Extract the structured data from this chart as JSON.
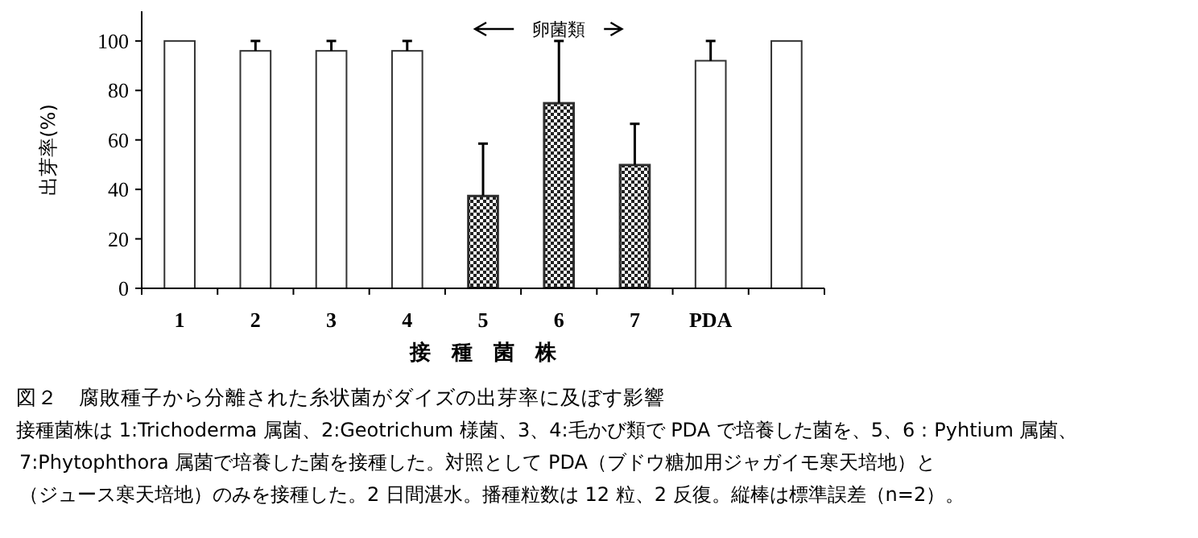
{
  "chart_data": {
    "type": "bar",
    "title": "図２　腐敗種子から分離された糸状菌がダイズの出芽率に及ぼす影響",
    "xlabel": "接　種　菌　株",
    "ylabel": "出芽率(%)",
    "categories": [
      "1",
      "2",
      "3",
      "4",
      "5",
      "6",
      "7",
      "PDA",
      null
    ],
    "values": [
      100,
      96,
      96,
      96,
      37.5,
      75,
      50,
      92,
      100
    ],
    "errors": [
      null,
      [
        96,
        100
      ],
      [
        96,
        100
      ],
      [
        96,
        100
      ],
      [
        37.5,
        58.5
      ],
      [
        75,
        100
      ],
      [
        50,
        66.5
      ],
      [
        92,
        100
      ],
      null
    ],
    "colors": [
      "#ffffff",
      "#ffffff",
      "#ffffff",
      "#ffffff",
      "#222222",
      "#222222",
      "#222222",
      "#ffffff",
      "#ffffff"
    ],
    "ylim": [
      0,
      112
    ],
    "yticks": [
      0,
      20,
      40,
      60,
      80,
      100
    ],
    "grid": false,
    "annotations": [
      "卵菌類",
      "接種菌株は 1:Trichoderma 属菌、2:Geotrichum 様菌、3、4:毛かび類で PDA で培養した菌を、5、6：Pyhtium 属菌、",
      "7:Phytophthora 属菌で培養した菌を接種した。対照として PDA（ブドウ糖加用ジャガイモ寒天培地）と",
      "（ジュース寒天培地）のみを接種した。2 日間湛水。播種粒数は 12 粒、2 反復。縦棒は標準誤差（n=2）。"
    ]
  }
}
